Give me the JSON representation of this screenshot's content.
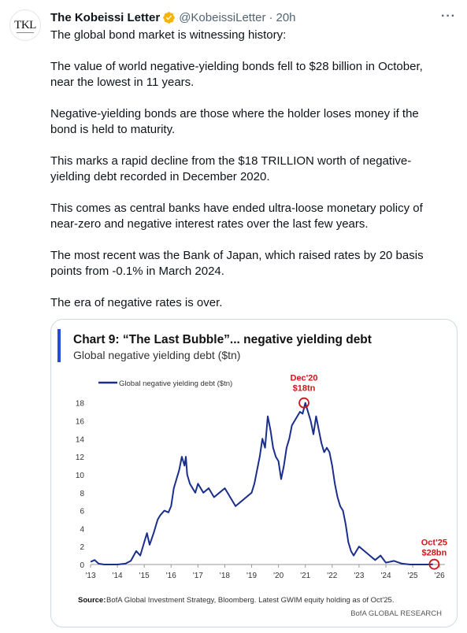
{
  "tweet": {
    "author_name": "The Kobeissi Letter",
    "author_handle": "@KobeissiLetter",
    "separator": "·",
    "time": "20h",
    "avatar_text": "TKL",
    "verified_color": "#f4b400",
    "more_icon": "more-horizontal-icon",
    "paragraphs": [
      "The global bond market is witnessing history:",
      "The value of world negative-yielding bonds fell to $28 billion in October, near the lowest in 11 years.",
      "Negative-yielding bonds are those where the holder loses money if the bond is held to maturity.",
      "This marks a rapid decline from the $18 TRILLION worth of negative-yielding debt recorded in December 2020.",
      "This comes as central banks have ended ultra-loose monetary policy of near-zero and negative interest rates over the last few years.",
      "The most recent was the Bank of Japan, which raised rates by 20 basis points from -0.1% in March 2024.",
      "The era of negative rates is over."
    ]
  },
  "chart_data": {
    "type": "line",
    "title": "Chart 9: “The Last Bubble”... negative yielding debt",
    "subtitle": "Global negative yielding debt ($tn)",
    "legend": "Global negative yielding debt ($tn)",
    "legend_position": "top-left",
    "series": [
      {
        "name": "Global negative yielding debt ($tn)",
        "color": "#1a2e8c",
        "x": [
          2013.0,
          2013.15,
          2013.3,
          2013.5,
          2014.0,
          2014.3,
          2014.5,
          2014.7,
          2014.85,
          2015.0,
          2015.1,
          2015.2,
          2015.35,
          2015.5,
          2015.6,
          2015.75,
          2015.9,
          2016.0,
          2016.1,
          2016.2,
          2016.3,
          2016.4,
          2016.5,
          2016.55,
          2016.6,
          2016.7,
          2016.8,
          2016.9,
          2017.0,
          2017.2,
          2017.4,
          2017.6,
          2017.8,
          2018.0,
          2018.2,
          2018.4,
          2018.6,
          2018.8,
          2019.0,
          2019.1,
          2019.2,
          2019.3,
          2019.4,
          2019.5,
          2019.6,
          2019.7,
          2019.8,
          2019.9,
          2020.0,
          2020.1,
          2020.2,
          2020.3,
          2020.4,
          2020.5,
          2020.6,
          2020.7,
          2020.8,
          2020.9,
          2021.0,
          2021.1,
          2021.2,
          2021.3,
          2021.4,
          2021.5,
          2021.6,
          2021.7,
          2021.8,
          2021.9,
          2022.0,
          2022.1,
          2022.2,
          2022.3,
          2022.4,
          2022.5,
          2022.6,
          2022.7,
          2022.8,
          2022.9,
          2023.0,
          2023.2,
          2023.4,
          2023.6,
          2023.8,
          2024.0,
          2024.3,
          2024.6,
          2024.9,
          2025.2,
          2025.5,
          2025.75
        ],
        "values": [
          0.3,
          0.5,
          0.1,
          0.0,
          0.0,
          0.1,
          0.4,
          1.5,
          1.0,
          2.5,
          3.5,
          2.2,
          3.5,
          5.0,
          5.5,
          6.0,
          5.8,
          6.5,
          8.5,
          9.5,
          10.5,
          12.0,
          11.0,
          12.0,
          10.0,
          9.0,
          8.5,
          8.0,
          9.0,
          8.0,
          8.5,
          7.5,
          8.0,
          8.5,
          7.5,
          6.5,
          7.0,
          7.5,
          8.0,
          9.0,
          10.5,
          12.0,
          14.0,
          13.0,
          16.5,
          15.0,
          13.0,
          12.0,
          11.5,
          9.5,
          11.0,
          13.0,
          14.0,
          15.5,
          16.0,
          16.5,
          17.0,
          16.8,
          18.0,
          17.0,
          16.0,
          14.5,
          16.5,
          15.0,
          13.5,
          12.5,
          13.0,
          12.5,
          11.0,
          9.0,
          7.5,
          6.5,
          6.0,
          4.5,
          2.5,
          1.5,
          1.0,
          1.5,
          2.0,
          1.5,
          1.0,
          0.5,
          1.0,
          0.2,
          0.4,
          0.1,
          0.0,
          0.0,
          0.0,
          0.028
        ]
      }
    ],
    "xticks": [
      "'13",
      "'14",
      "'15",
      "'16",
      "'17",
      "'18",
      "'19",
      "'20",
      "'21",
      "'22",
      "'23",
      "'24",
      "'25",
      "'26"
    ],
    "yticks": [
      0,
      2,
      4,
      6,
      8,
      10,
      12,
      14,
      16,
      18
    ],
    "xlim": [
      2013,
      2026.2
    ],
    "ylim": [
      0,
      18.5
    ],
    "annotations": [
      {
        "label1": "Dec'20",
        "label2": "$18tn",
        "x": 2020.95,
        "y": 18.0
      },
      {
        "label1": "Oct'25",
        "label2": "$28bn",
        "x": 2025.8,
        "y": 0.028
      }
    ],
    "source_label": "Source:",
    "source_text": "BofA Global Investment Strategy, Bloomberg. Latest GWIM equity holding as of Oct'25.",
    "footer": "BofA GLOBAL RESEARCH",
    "accent_color": "#1f4fd8",
    "highlight_color": "#d0161b"
  }
}
